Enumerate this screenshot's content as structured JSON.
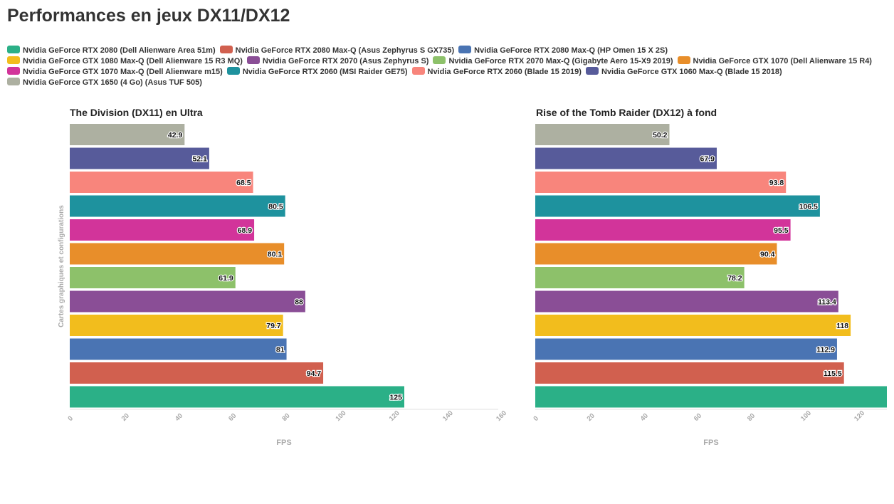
{
  "page": {
    "title": "Performances en jeux DX11/DX12"
  },
  "legend": [
    {
      "label": "Nvidia GeForce RTX 2080 (Dell Alienware Area 51m)",
      "color": "#2bb087"
    },
    {
      "label": "Nvidia GeForce RTX 2080 Max-Q (Asus Zephyrus S GX735)",
      "color": "#d1604f"
    },
    {
      "label": "Nvidia GeForce RTX 2080 Max-Q (HP Omen 15 X 2S)",
      "color": "#4a74b3"
    },
    {
      "label": "Nvidia GeForce GTX 1080 Max-Q (Dell Alienware 15 R3 MQ)",
      "color": "#f2bd1d"
    },
    {
      "label": "Nvidia GeForce RTX 2070 (Asus Zephyrus S)",
      "color": "#8a4e96"
    },
    {
      "label": "Nvidia GeForce RTX 2070 Max-Q (Gigabyte Aero 15-X9 2019)",
      "color": "#8dc16a"
    },
    {
      "label": "Nvidia GeForce GTX 1070 (Dell Alienware 15 R4)",
      "color": "#e88e2a"
    },
    {
      "label": "Nvidia GeForce GTX 1070 Max-Q (Dell Alienware m15)",
      "color": "#d2349a"
    },
    {
      "label": "Nvidia GeForce RTX 2060 (MSI Raider GE75)",
      "color": "#1e929e"
    },
    {
      "label": "Nvidia GeForce RTX 2060 (Blade 15 2019)",
      "color": "#f8857c"
    },
    {
      "label": "Nvidia GeForce GTX 1060 Max-Q (Blade 15 2018)",
      "color": "#575b9a"
    },
    {
      "label": "Nvidia GeForce GTX 1650 (4 Go) (Asus TUF 505)",
      "color": "#adb0a1"
    }
  ],
  "chart_data": [
    {
      "type": "bar",
      "orientation": "horizontal",
      "title": "The Division (DX11) en Ultra",
      "xlabel": "FPS",
      "ylabel": "Cartes graphiques et configurations",
      "xlim": [
        0,
        160
      ],
      "xticks": [
        "0",
        "20",
        "40",
        "60",
        "80",
        "100",
        "120",
        "140",
        "160"
      ],
      "categories": [
        "Nvidia GeForce RTX 2080 (Dell Alienware Area 51m)",
        "Nvidia GeForce RTX 2080 Max-Q (Asus Zephyrus S GX735)",
        "Nvidia GeForce RTX 2080 Max-Q (HP Omen 15 X 2S)",
        "Nvidia GeForce GTX 1080 Max-Q (Dell Alienware 15 R3 MQ)",
        "Nvidia GeForce RTX 2070 (Asus Zephyrus S)",
        "Nvidia GeForce RTX 2070 Max-Q (Gigabyte Aero 15-X9 2019)",
        "Nvidia GeForce GTX 1070 (Dell Alienware 15 R4)",
        "Nvidia GeForce GTX 1070 Max-Q (Dell Alienware m15)",
        "Nvidia GeForce RTX 2060 (MSI Raider GE75)",
        "Nvidia GeForce RTX 2060 (Blade 15 2019)",
        "Nvidia GeForce GTX 1060 Max-Q (Blade 15 2018)",
        "Nvidia GeForce GTX 1650 (4 Go) (Asus TUF 505)"
      ],
      "values": [
        125,
        94.7,
        81,
        79.7,
        88,
        61.9,
        80.1,
        68.9,
        80.5,
        68.5,
        52.1,
        42.9
      ],
      "labels": [
        "125",
        "94.7",
        "81",
        "79.7",
        "88",
        "61.9",
        "80.1",
        "68.9",
        "80.5",
        "68.5",
        "52.1",
        "42.9"
      ]
    },
    {
      "type": "bar",
      "orientation": "horizontal",
      "title": "Rise of the Tomb Raider (DX12) à fond",
      "xlabel": "FPS",
      "xlim": [
        0,
        130
      ],
      "xticks": [
        "0",
        "20",
        "40",
        "60",
        "80",
        "100",
        "120"
      ],
      "categories": [
        "Nvidia GeForce RTX 2080 (Dell Alienware Area 51m)",
        "Nvidia GeForce RTX 2080 Max-Q (Asus Zephyrus S GX735)",
        "Nvidia GeForce RTX 2080 Max-Q (HP Omen 15 X 2S)",
        "Nvidia GeForce GTX 1080 Max-Q (Dell Alienware 15 R3 MQ)",
        "Nvidia GeForce RTX 2070 (Asus Zephyrus S)",
        "Nvidia GeForce RTX 2070 Max-Q (Gigabyte Aero 15-X9 2019)",
        "Nvidia GeForce GTX 1070 (Dell Alienware 15 R4)",
        "Nvidia GeForce GTX 1070 Max-Q (Dell Alienware m15)",
        "Nvidia GeForce RTX 2060 (MSI Raider GE75)",
        "Nvidia GeForce RTX 2060 (Blade 15 2019)",
        "Nvidia GeForce GTX 1060 Max-Q (Blade 15 2018)",
        "Nvidia GeForce GTX 1650 (4 Go) (Asus TUF 505)"
      ],
      "values": [
        132,
        115.5,
        112.9,
        118,
        113.4,
        78.2,
        90.4,
        95.5,
        106.5,
        93.8,
        67.9,
        50.2
      ],
      "labels": [
        null,
        "115.5",
        "112.9",
        "118",
        "113.4",
        "78.2",
        "90.4",
        "95.5",
        "106.5",
        "93.8",
        "67.9",
        "50.2"
      ]
    }
  ]
}
